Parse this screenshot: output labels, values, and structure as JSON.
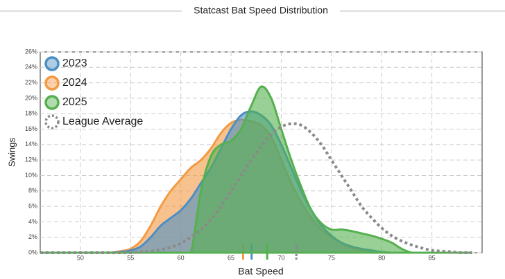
{
  "chart_data": {
    "type": "area",
    "title": "Statcast Bat Speed Distribution",
    "xlabel": "Bat Speed",
    "ylabel": "Swings",
    "xlim": [
      46,
      90
    ],
    "xticks": [
      50,
      55,
      60,
      65,
      70,
      75,
      80,
      85
    ],
    "ylim": [
      0,
      26
    ],
    "yticks": [
      {
        "value": 0,
        "label": "0%"
      },
      {
        "value": 2,
        "label": "2%"
      },
      {
        "value": 4,
        "label": "4%"
      },
      {
        "value": 6,
        "label": "6%"
      },
      {
        "value": 8,
        "label": "8%"
      },
      {
        "value": 10,
        "label": "10%"
      },
      {
        "value": 12,
        "label": "12%"
      },
      {
        "value": 14,
        "label": "14%"
      },
      {
        "value": 16,
        "label": "16%"
      },
      {
        "value": 18,
        "label": "18%"
      },
      {
        "value": 20,
        "label": "20%"
      },
      {
        "value": 22,
        "label": "22%"
      },
      {
        "value": 24,
        "label": "24%"
      },
      {
        "value": 26,
        "label": "26%"
      }
    ],
    "grid": true,
    "legend": "upper left",
    "x": [
      46,
      47,
      48,
      49,
      50,
      51,
      52,
      53,
      54,
      55,
      56,
      57,
      58,
      59,
      60,
      61,
      62,
      63,
      64,
      65,
      66,
      67,
      68,
      69,
      70,
      71,
      72,
      73,
      74,
      75,
      76,
      77,
      78,
      79,
      80,
      81,
      82,
      83,
      84,
      85,
      86,
      87,
      88,
      89
    ],
    "series": [
      {
        "name": "2024",
        "color": "#f39a43",
        "mean": 66.2,
        "values": [
          0,
          0,
          0,
          0,
          0,
          0,
          0,
          0,
          0.2,
          0.5,
          1.5,
          3.5,
          6,
          8,
          9.5,
          11,
          12,
          13.5,
          15.5,
          16.8,
          17.2,
          17,
          16.5,
          15,
          12,
          9,
          6.5,
          4.5,
          3,
          2,
          1.2,
          0.6,
          0.3,
          0.1,
          0,
          0,
          0,
          0,
          0,
          0,
          0,
          0,
          0,
          0
        ]
      },
      {
        "name": "2023",
        "color": "#4b8fc4",
        "mean": 67.05,
        "values": [
          0,
          0,
          0,
          0,
          0,
          0,
          0,
          0,
          0.1,
          0.3,
          0.8,
          2,
          3.5,
          4.5,
          5.5,
          7,
          9,
          11,
          13.5,
          16,
          17.8,
          18.3,
          17.8,
          16.5,
          14,
          11,
          8,
          5.5,
          3.5,
          2.2,
          1.3,
          0.8,
          0.5,
          0.3,
          0.1,
          0,
          0,
          0,
          0,
          0,
          0,
          0,
          0,
          0
        ]
      },
      {
        "name": "2025",
        "color": "#55b04f",
        "mean": 68.6,
        "values": [
          0,
          0,
          0,
          0,
          0,
          0,
          0,
          0,
          0,
          0,
          0,
          0,
          0,
          0,
          0,
          0,
          8,
          12.5,
          14,
          14.5,
          16,
          19,
          21.5,
          20,
          16,
          12,
          8.5,
          5.5,
          3.8,
          3,
          3,
          2.8,
          2.5,
          2.2,
          1.8,
          1.3,
          0.5,
          0,
          0,
          0,
          0,
          0,
          0,
          0
        ]
      },
      {
        "name": "League Average",
        "color": "#8a8a8a",
        "mean": 71.5,
        "dashed": true,
        "values": [
          0,
          0,
          0,
          0,
          0,
          0,
          0,
          0,
          0,
          0,
          0.1,
          0.2,
          0.4,
          0.7,
          1.2,
          2,
          3,
          4.3,
          6,
          8,
          10,
          12,
          13.8,
          15.3,
          16.3,
          16.7,
          16.5,
          15.5,
          14,
          12,
          10,
          8,
          6,
          4.5,
          3.2,
          2.2,
          1.5,
          1,
          0.6,
          0.3,
          0.2,
          0.1,
          0,
          0
        ]
      }
    ],
    "legend_order": [
      1,
      0,
      2,
      3
    ]
  }
}
